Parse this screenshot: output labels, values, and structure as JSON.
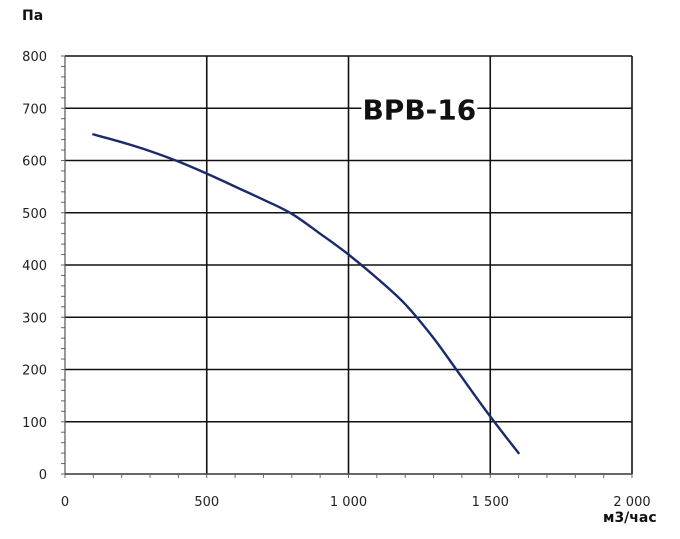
{
  "chart_data": {
    "type": "line",
    "title": "BPB-16",
    "xlabel": "м3/час",
    "ylabel": "Па",
    "xlim": [
      0,
      2000
    ],
    "ylim": [
      0,
      800
    ],
    "x_ticks": [
      0,
      500,
      1000,
      1500,
      2000
    ],
    "x_tick_labels": [
      "0",
      "500",
      "1 000",
      "1 500",
      "2 000"
    ],
    "y_ticks": [
      0,
      100,
      200,
      300,
      400,
      500,
      600,
      700,
      800
    ],
    "y_tick_labels": [
      "0",
      "100",
      "200",
      "300",
      "400",
      "500",
      "600",
      "700",
      "800"
    ],
    "grid": true,
    "series": [
      {
        "color": "#1a2a6c",
        "x": [
          100,
          200,
          300,
          400,
          500,
          600,
          700,
          800,
          900,
          1000,
          1100,
          1200,
          1300,
          1400,
          1500,
          1600
        ],
        "y": [
          650,
          635,
          618,
          598,
          575,
          550,
          525,
          498,
          460,
          420,
          375,
          325,
          260,
          185,
          110,
          40
        ]
      }
    ]
  }
}
